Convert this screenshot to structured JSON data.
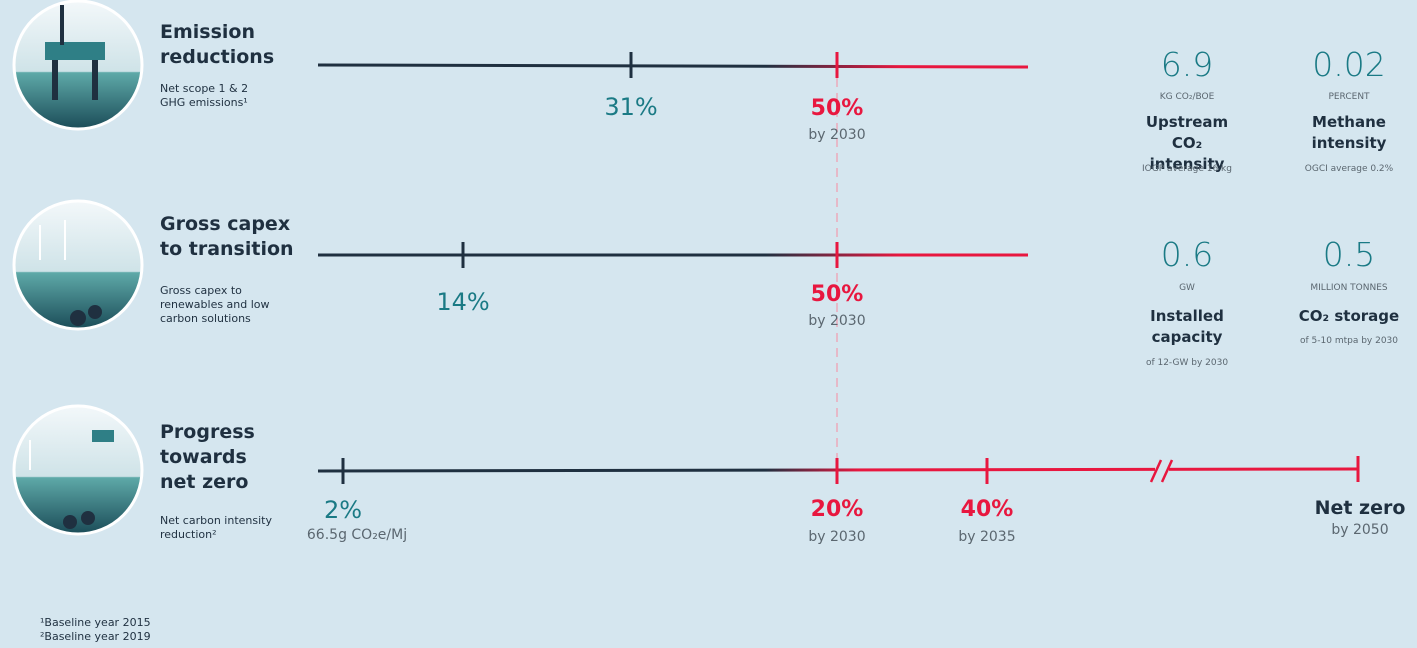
{
  "rows": [
    {
      "title": "Emission reductions",
      "subtitle": "Net scope 1 & 2 GHG emissions¹",
      "current": {
        "value": "31%"
      },
      "targets": [
        {
          "value": "50%",
          "note": "by 2030"
        }
      ],
      "metrics": [
        {
          "value": "6.9",
          "unit": "KG CO₂/BOE",
          "label": "Upstream CO₂ intensity",
          "note": "IOGP average 16 kg"
        },
        {
          "value": "0.02",
          "unit": "PERCENT",
          "label": "Methane intensity",
          "note": "OGCI average 0.2%"
        }
      ]
    },
    {
      "title": "Gross capex to transition",
      "subtitle": "Gross capex to renewables and low carbon solutions",
      "current": {
        "value": "14%"
      },
      "targets": [
        {
          "value": "50%",
          "note": "by 2030"
        }
      ],
      "metrics": [
        {
          "value": "0.6",
          "unit": "GW",
          "label": "Installed capacity",
          "note": "of 12-GW by 2030"
        },
        {
          "value": "0.5",
          "unit": "MILLION TONNES",
          "label": "CO₂ storage",
          "note": "of 5-10 mtpa by 2030"
        }
      ]
    },
    {
      "title": "Progress towards net zero",
      "subtitle": "Net carbon intensity reduction²",
      "current": {
        "value": "2%",
        "note": "66.5g CO₂e/Mj"
      },
      "targets": [
        {
          "value": "20%",
          "note": "by 2030"
        },
        {
          "value": "40%",
          "note": "by 2035"
        },
        {
          "value": "Net zero",
          "note": "by 2050"
        }
      ]
    }
  ],
  "footnotes": [
    "¹Baseline year 2015",
    "²Baseline year 2019"
  ]
}
